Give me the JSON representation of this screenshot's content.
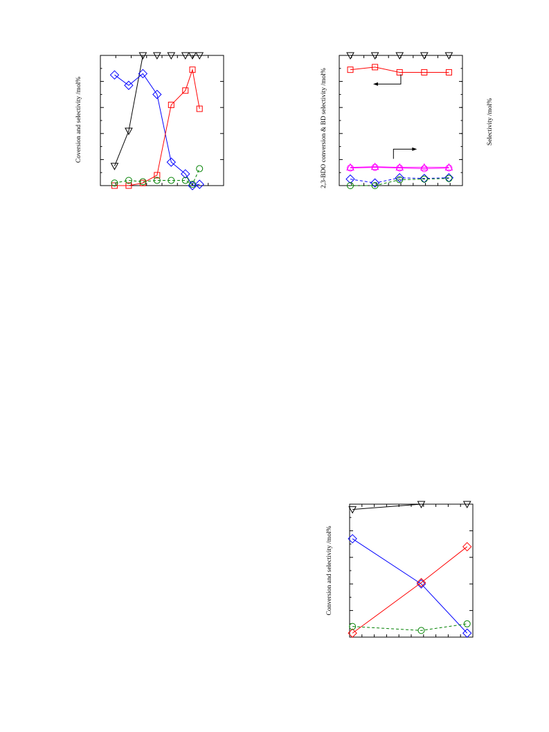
{
  "chart_data": [
    {
      "type": "line",
      "ylabel": "Coversion and selectivity /mol%",
      "x": [
        1,
        2,
        3,
        4,
        5,
        6,
        7,
        8
      ],
      "xlim": [
        0,
        8.7
      ],
      "ylim": [
        0,
        100
      ],
      "grid": false,
      "series": [
        {
          "marker": "triangle-down",
          "color": "#000000",
          "dash": false,
          "points": [
            [
              1,
              15
            ],
            [
              2,
              42
            ],
            [
              3,
              100
            ],
            [
              4,
              100
            ],
            [
              5,
              100
            ],
            [
              6,
              100
            ],
            [
              6.5,
              100
            ],
            [
              7,
              100
            ]
          ]
        },
        {
          "marker": "diamond",
          "color": "#0000ff",
          "dash": false,
          "points": [
            [
              1,
              85
            ],
            [
              2,
              77
            ],
            [
              3,
              86
            ],
            [
              4,
              70
            ],
            [
              5,
              18
            ],
            [
              6,
              9
            ],
            [
              6.5,
              0
            ],
            [
              7,
              1
            ]
          ]
        },
        {
          "marker": "square",
          "color": "#ff0000",
          "dash": false,
          "points": [
            [
              1,
              0
            ],
            [
              2,
              0
            ],
            [
              3,
              2
            ],
            [
              4,
              8
            ],
            [
              5,
              62
            ],
            [
              6,
              73
            ],
            [
              6.5,
              89
            ],
            [
              7,
              59
            ]
          ]
        },
        {
          "marker": "circle",
          "color": "#008000",
          "dash": true,
          "points": [
            [
              1,
              2
            ],
            [
              2,
              4
            ],
            [
              3,
              3
            ],
            [
              4,
              4
            ],
            [
              5,
              4
            ],
            [
              6,
              4
            ],
            [
              6.5,
              1
            ],
            [
              7,
              13
            ]
          ]
        }
      ]
    },
    {
      "type": "line",
      "ylabel": "2,3-BDO conversion & BD selectivity /mol%",
      "y2label": "Selectivity /mol%",
      "x": [
        1,
        2,
        3,
        4,
        5
      ],
      "xlim": [
        0.55,
        5.55
      ],
      "ylim": [
        0,
        100
      ],
      "grid": false,
      "series": [
        {
          "marker": "triangle-down",
          "color": "#000000",
          "dash": false,
          "points": [
            [
              1,
              100
            ],
            [
              2,
              100
            ],
            [
              3,
              100
            ],
            [
              4,
              100
            ],
            [
              5,
              100
            ]
          ]
        },
        {
          "marker": "square",
          "color": "#ff0000",
          "dash": false,
          "points": [
            [
              1,
              89
            ],
            [
              2,
              91
            ],
            [
              3,
              87
            ],
            [
              4,
              87
            ],
            [
              5,
              87
            ]
          ]
        },
        {
          "marker": "triangle-up",
          "color": "#ff00ff",
          "dash": false,
          "points": [
            [
              1,
              14
            ],
            [
              2,
              14.5
            ],
            [
              3,
              14
            ],
            [
              4,
              14
            ],
            [
              5,
              14
            ]
          ]
        },
        {
          "marker": "circle",
          "color": "#ff00ff",
          "dash": false,
          "points": [
            [
              1,
              13.5
            ],
            [
              2,
              14
            ],
            [
              3,
              13.5
            ],
            [
              4,
              13
            ],
            [
              5,
              13.5
            ]
          ]
        },
        {
          "marker": "diamond",
          "color": "#0000ff",
          "dash": true,
          "points": [
            [
              1,
              5
            ],
            [
              2,
              2
            ],
            [
              3,
              6
            ],
            [
              4,
              5.5
            ],
            [
              5,
              6
            ]
          ]
        },
        {
          "marker": "circle",
          "color": "#008000",
          "dash": true,
          "points": [
            [
              1,
              0
            ],
            [
              2,
              0
            ],
            [
              3,
              4.5
            ],
            [
              4,
              5
            ],
            [
              5,
              5.5
            ]
          ]
        }
      ],
      "annotations": [
        {
          "type": "arrow",
          "direction": "left"
        },
        {
          "type": "arrow",
          "direction": "right"
        }
      ]
    },
    {
      "type": "line",
      "ylabel": "Conversion and selectivity /mol%",
      "x": [
        1,
        2,
        3
      ],
      "xlim": [
        0.95,
        3.1
      ],
      "ylim": [
        0,
        100
      ],
      "grid": false,
      "series": [
        {
          "marker": "triangle-down",
          "color": "#000000",
          "dash": false,
          "points": [
            [
              1,
              96
            ],
            [
              2.2,
              100
            ],
            [
              3,
              100
            ]
          ]
        },
        {
          "marker": "diamond",
          "color": "#0000ff",
          "dash": false,
          "points": [
            [
              1,
              74
            ],
            [
              2.2,
              40
            ],
            [
              3,
              3
            ]
          ]
        },
        {
          "marker": "diamond",
          "color": "#ff0000",
          "dash": false,
          "points": [
            [
              1,
              3
            ],
            [
              2.2,
              41
            ],
            [
              3,
              68
            ]
          ]
        },
        {
          "marker": "circle",
          "color": "#008000",
          "dash": true,
          "points": [
            [
              1,
              8
            ],
            [
              2.2,
              5
            ],
            [
              3,
              10
            ]
          ]
        }
      ]
    }
  ]
}
